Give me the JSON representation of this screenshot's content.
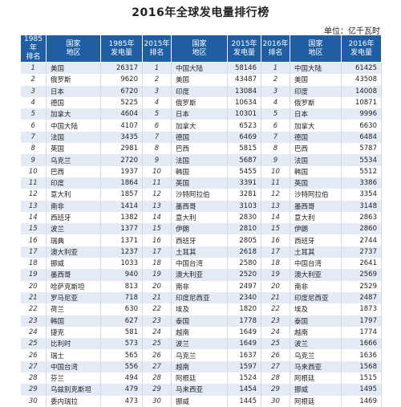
{
  "title": "2016年全球发电量排行榜",
  "unit": "单位：亿千瓦时",
  "headers": {
    "rank_1985": [
      "1985年",
      "排名"
    ],
    "region_1985": [
      "国家",
      "地区"
    ],
    "gen_1985": [
      "1985年",
      "发电量"
    ],
    "rank_2015": [
      "2015年",
      "排名"
    ],
    "region_2015": [
      "国家",
      "地区"
    ],
    "gen_2015": [
      "2015年",
      "发电量"
    ],
    "rank_2016": [
      "2016年",
      "排名"
    ],
    "region_2016": [
      "国家",
      "地区"
    ],
    "gen_2016": [
      "2016年",
      "发电量"
    ]
  },
  "rows": [
    {
      "r85": "1",
      "c85": "美国",
      "v85": "26317",
      "r15": "1",
      "c15": "中国大陆",
      "v15": "58146",
      "r16": "1",
      "c16": "中国大陆",
      "v16": "61425"
    },
    {
      "r85": "2",
      "c85": "俄罗斯",
      "v85": "9620",
      "r15": "2",
      "c15": "美国",
      "v15": "43487",
      "r16": "2",
      "c16": "美国",
      "v16": "43508"
    },
    {
      "r85": "3",
      "c85": "日本",
      "v85": "6720",
      "r15": "3",
      "c15": "印度",
      "v15": "13084",
      "r16": "3",
      "c16": "印度",
      "v16": "14008"
    },
    {
      "r85": "4",
      "c85": "德国",
      "v85": "5225",
      "r15": "4",
      "c15": "俄罗斯",
      "v15": "10634",
      "r16": "4",
      "c16": "俄罗斯",
      "v16": "10871"
    },
    {
      "r85": "5",
      "c85": "加拿大",
      "v85": "4604",
      "r15": "5",
      "c15": "日本",
      "v15": "10301",
      "r16": "5",
      "c16": "日本",
      "v16": "9996"
    },
    {
      "r85": "6",
      "c85": "中国大陆",
      "v85": "4107",
      "r15": "6",
      "c15": "加拿大",
      "v15": "6523",
      "r16": "6",
      "c16": "加拿大",
      "v16": "6630"
    },
    {
      "r85": "7",
      "c85": "法国",
      "v85": "3435",
      "r15": "7",
      "c15": "德国",
      "v15": "6469",
      "r16": "7",
      "c16": "德国",
      "v16": "6484"
    },
    {
      "r85": "8",
      "c85": "英国",
      "v85": "2981",
      "r15": "8",
      "c15": "巴西",
      "v15": "5815",
      "r16": "8",
      "c16": "巴西",
      "v16": "5787"
    },
    {
      "r85": "9",
      "c85": "乌克兰",
      "v85": "2720",
      "r15": "9",
      "c15": "法国",
      "v15": "5687",
      "r16": "9",
      "c16": "法国",
      "v16": "5534"
    },
    {
      "r85": "10",
      "c85": "巴西",
      "v85": "1937",
      "r15": "10",
      "c15": "韩国",
      "v15": "5455",
      "r16": "10",
      "c16": "韩国",
      "v16": "5512"
    },
    {
      "r85": "11",
      "c85": "印度",
      "v85": "1864",
      "r15": "11",
      "c15": "英国",
      "v15": "3391",
      "r16": "11",
      "c16": "英国",
      "v16": "3386"
    },
    {
      "r85": "12",
      "c85": "意大利",
      "v85": "1857",
      "r15": "12",
      "c15": "沙特阿拉伯",
      "v15": "3281",
      "r16": "12",
      "c16": "沙特阿拉伯",
      "v16": "3354"
    },
    {
      "r85": "13",
      "c85": "南非",
      "v85": "1414",
      "r15": "13",
      "c15": "墨西哥",
      "v15": "3103",
      "r16": "13",
      "c16": "墨西哥",
      "v16": "3148"
    },
    {
      "r85": "14",
      "c85": "西班牙",
      "v85": "1382",
      "r15": "14",
      "c15": "意大利",
      "v15": "2830",
      "r16": "14",
      "c16": "意大利",
      "v16": "2863"
    },
    {
      "r85": "15",
      "c85": "波兰",
      "v85": "1377",
      "r15": "15",
      "c15": "伊朗",
      "v15": "2810",
      "r16": "15",
      "c16": "伊朗",
      "v16": "2860"
    },
    {
      "r85": "16",
      "c85": "瑞典",
      "v85": "1371",
      "r15": "16",
      "c15": "西班牙",
      "v15": "2805",
      "r16": "16",
      "c16": "西班牙",
      "v16": "2744"
    },
    {
      "r85": "17",
      "c85": "澳大利亚",
      "v85": "1237",
      "r15": "17",
      "c15": "土耳其",
      "v15": "2618",
      "r16": "17",
      "c16": "土耳其",
      "v16": "2737"
    },
    {
      "r85": "18",
      "c85": "挪威",
      "v85": "1033",
      "r15": "18",
      "c15": "中国台湾",
      "v15": "2580",
      "r16": "18",
      "c16": "中国台湾",
      "v16": "2641"
    },
    {
      "r85": "19",
      "c85": "墨西哥",
      "v85": "940",
      "r15": "19",
      "c15": "澳大利亚",
      "v15": "2520",
      "r16": "19",
      "c16": "澳大利亚",
      "v16": "2569"
    },
    {
      "r85": "20",
      "c85": "哈萨克斯坦",
      "v85": "813",
      "r15": "20",
      "c15": "南非",
      "v15": "2497",
      "r16": "20",
      "c16": "南非",
      "v16": "2529"
    },
    {
      "r85": "21",
      "c85": "罗马尼亚",
      "v85": "718",
      "r15": "21",
      "c15": "印度尼西亚",
      "v15": "2340",
      "r16": "21",
      "c16": "印度尼西亚",
      "v16": "2487"
    },
    {
      "r85": "22",
      "c85": "荷兰",
      "v85": "630",
      "r15": "22",
      "c15": "埃及",
      "v15": "1820",
      "r16": "22",
      "c16": "埃及",
      "v16": "1873"
    },
    {
      "r85": "23",
      "c85": "韩国",
      "v85": "627",
      "r15": "23",
      "c15": "泰国",
      "v15": "1778",
      "r16": "23",
      "c16": "泰国",
      "v16": "1797"
    },
    {
      "r85": "24",
      "c85": "捷克",
      "v85": "581",
      "r15": "24",
      "c15": "越南",
      "v15": "1649",
      "r16": "24",
      "c16": "越南",
      "v16": "1774"
    },
    {
      "r85": "25",
      "c85": "比利时",
      "v85": "573",
      "r15": "25",
      "c15": "波兰",
      "v15": "1649",
      "r16": "25",
      "c16": "波兰",
      "v16": "1666"
    },
    {
      "r85": "26",
      "c85": "瑞士",
      "v85": "565",
      "r15": "26",
      "c15": "乌克兰",
      "v15": "1637",
      "r16": "26",
      "c16": "乌克兰",
      "v16": "1636"
    },
    {
      "r85": "27",
      "c85": "中国台湾",
      "v85": "556",
      "r15": "27",
      "c15": "越南",
      "v15": "1597",
      "r16": "27",
      "c16": "马来西亚",
      "v16": "1568"
    },
    {
      "r85": "28",
      "c85": "芬兰",
      "v85": "494",
      "r15": "28",
      "c15": "阿根廷",
      "v15": "1524",
      "r16": "28",
      "c16": "阿根廷",
      "v16": "1515"
    },
    {
      "r85": "29",
      "c85": "乌兹别克斯坦",
      "v85": "479",
      "r15": "29",
      "c15": "马来西亚",
      "v15": "1454",
      "r16": "29",
      "c16": "挪威",
      "v16": "1495"
    },
    {
      "r85": "30",
      "c85": "委内瑞拉",
      "v85": "473",
      "r15": "30",
      "c15": "挪威",
      "v15": "1445",
      "r16": "30",
      "c16": "阿根廷",
      "v16": "1469"
    }
  ]
}
